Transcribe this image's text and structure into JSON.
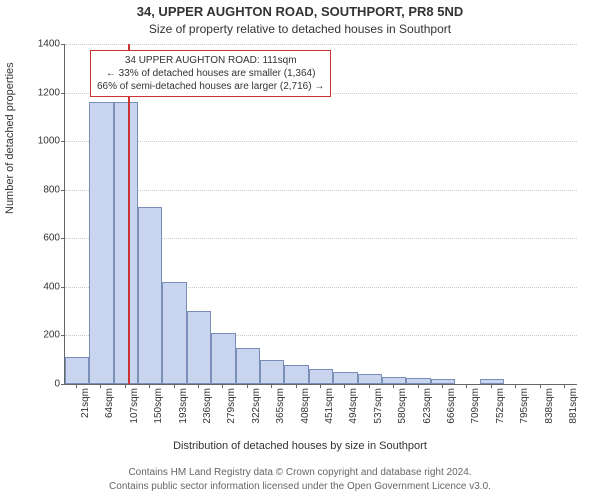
{
  "title_line1": "34, UPPER AUGHTON ROAD, SOUTHPORT, PR8 5ND",
  "title_line2": "Size of property relative to detached houses in Southport",
  "ylabel": "Number of detached properties",
  "xlabel": "Distribution of detached houses by size in Southport",
  "footer_line1": "Contains HM Land Registry data © Crown copyright and database right 2024.",
  "footer_line2": "Contains public sector information licensed under the Open Government Licence v3.0.",
  "annotation": {
    "line1": "34 UPPER AUGHTON ROAD: 111sqm",
    "line2": "← 33% of detached houses are smaller (1,364)",
    "line3": "66% of semi-detached houses are larger (2,716) →"
  },
  "chart": {
    "type": "histogram",
    "bar_fill": "#c9d5ee",
    "bar_stroke": "#7a8fb8",
    "marker_color": "#cc3333",
    "grid_color": "#cccccc",
    "background_color": "#ffffff",
    "marker_x": 111,
    "xmin": 0,
    "xmax": 902,
    "ymin": 0,
    "ymax": 1400,
    "ytick_step": 200,
    "yticks": [
      0,
      200,
      400,
      600,
      800,
      1000,
      1200,
      1400
    ],
    "xticks": [
      21,
      64,
      107,
      150,
      193,
      236,
      279,
      322,
      365,
      408,
      451,
      494,
      537,
      580,
      623,
      666,
      709,
      752,
      795,
      838,
      881
    ],
    "xtick_unit": "sqm",
    "bin_width": 43,
    "values": [
      110,
      1160,
      1160,
      730,
      420,
      300,
      210,
      150,
      100,
      80,
      60,
      50,
      40,
      30,
      25,
      20,
      0,
      20,
      0,
      0,
      0
    ]
  }
}
